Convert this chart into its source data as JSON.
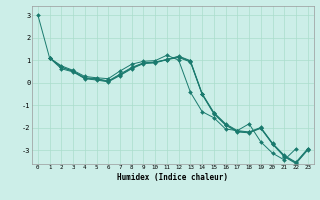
{
  "xlabel": "Humidex (Indice chaleur)",
  "background_color": "#cceee8",
  "line_color": "#1a7a6e",
  "grid_color": "#aaddcc",
  "xlim": [
    -0.5,
    23.5
  ],
  "ylim": [
    -3.6,
    3.4
  ],
  "yticks": [
    -3,
    -2,
    -1,
    0,
    1,
    2,
    3
  ],
  "xticks": [
    0,
    1,
    2,
    3,
    4,
    5,
    6,
    7,
    8,
    9,
    10,
    11,
    12,
    13,
    14,
    15,
    16,
    17,
    18,
    19,
    20,
    21,
    22,
    23
  ],
  "series": [
    {
      "x": [
        0,
        1,
        2,
        3,
        4,
        5,
        6,
        7,
        8,
        9,
        10,
        11,
        12,
        13,
        14,
        15,
        16,
        17,
        18,
        19,
        20,
        21,
        22
      ],
      "y": [
        3.0,
        1.1,
        0.75,
        0.55,
        0.28,
        0.22,
        0.18,
        0.52,
        0.82,
        0.95,
        0.98,
        1.22,
        1.0,
        -0.42,
        -1.28,
        -1.55,
        -2.05,
        -2.12,
        -1.82,
        -2.62,
        -3.12,
        -3.42,
        -2.92
      ]
    },
    {
      "x": [
        1,
        2,
        3,
        4,
        5,
        6,
        7,
        8,
        9,
        10,
        11,
        12,
        13,
        14,
        15,
        16,
        17,
        18,
        19,
        20,
        21,
        22,
        23
      ],
      "y": [
        1.1,
        0.68,
        0.52,
        0.22,
        0.18,
        0.08,
        0.38,
        0.68,
        0.88,
        0.92,
        1.02,
        1.18,
        0.98,
        -0.48,
        -1.32,
        -1.82,
        -2.12,
        -2.18,
        -1.98,
        -2.68,
        -3.22,
        -3.52,
        -2.92
      ]
    },
    {
      "x": [
        1,
        2,
        3,
        4,
        5,
        6,
        7,
        8,
        9,
        10,
        11,
        12,
        13,
        14,
        15,
        16,
        17,
        18,
        19,
        20,
        21,
        22,
        23
      ],
      "y": [
        1.1,
        0.62,
        0.48,
        0.18,
        0.12,
        0.04,
        0.32,
        0.62,
        0.85,
        0.88,
        1.02,
        1.12,
        0.92,
        -0.52,
        -1.38,
        -1.88,
        -2.18,
        -2.22,
        -2.02,
        -2.72,
        -3.28,
        -3.58,
        -2.98
      ]
    },
    {
      "x": [
        1,
        2,
        3,
        4,
        5,
        6,
        7,
        8,
        9,
        10,
        11,
        12,
        13,
        14,
        15,
        16,
        17,
        18,
        19,
        20,
        21,
        22,
        23
      ],
      "y": [
        1.1,
        0.7,
        0.5,
        0.2,
        0.15,
        0.06,
        0.35,
        0.65,
        0.87,
        0.9,
        1.04,
        1.15,
        0.95,
        -0.5,
        -1.35,
        -1.85,
        -2.15,
        -2.2,
        -2.0,
        -2.7,
        -3.25,
        -3.55,
        -2.95
      ]
    }
  ]
}
